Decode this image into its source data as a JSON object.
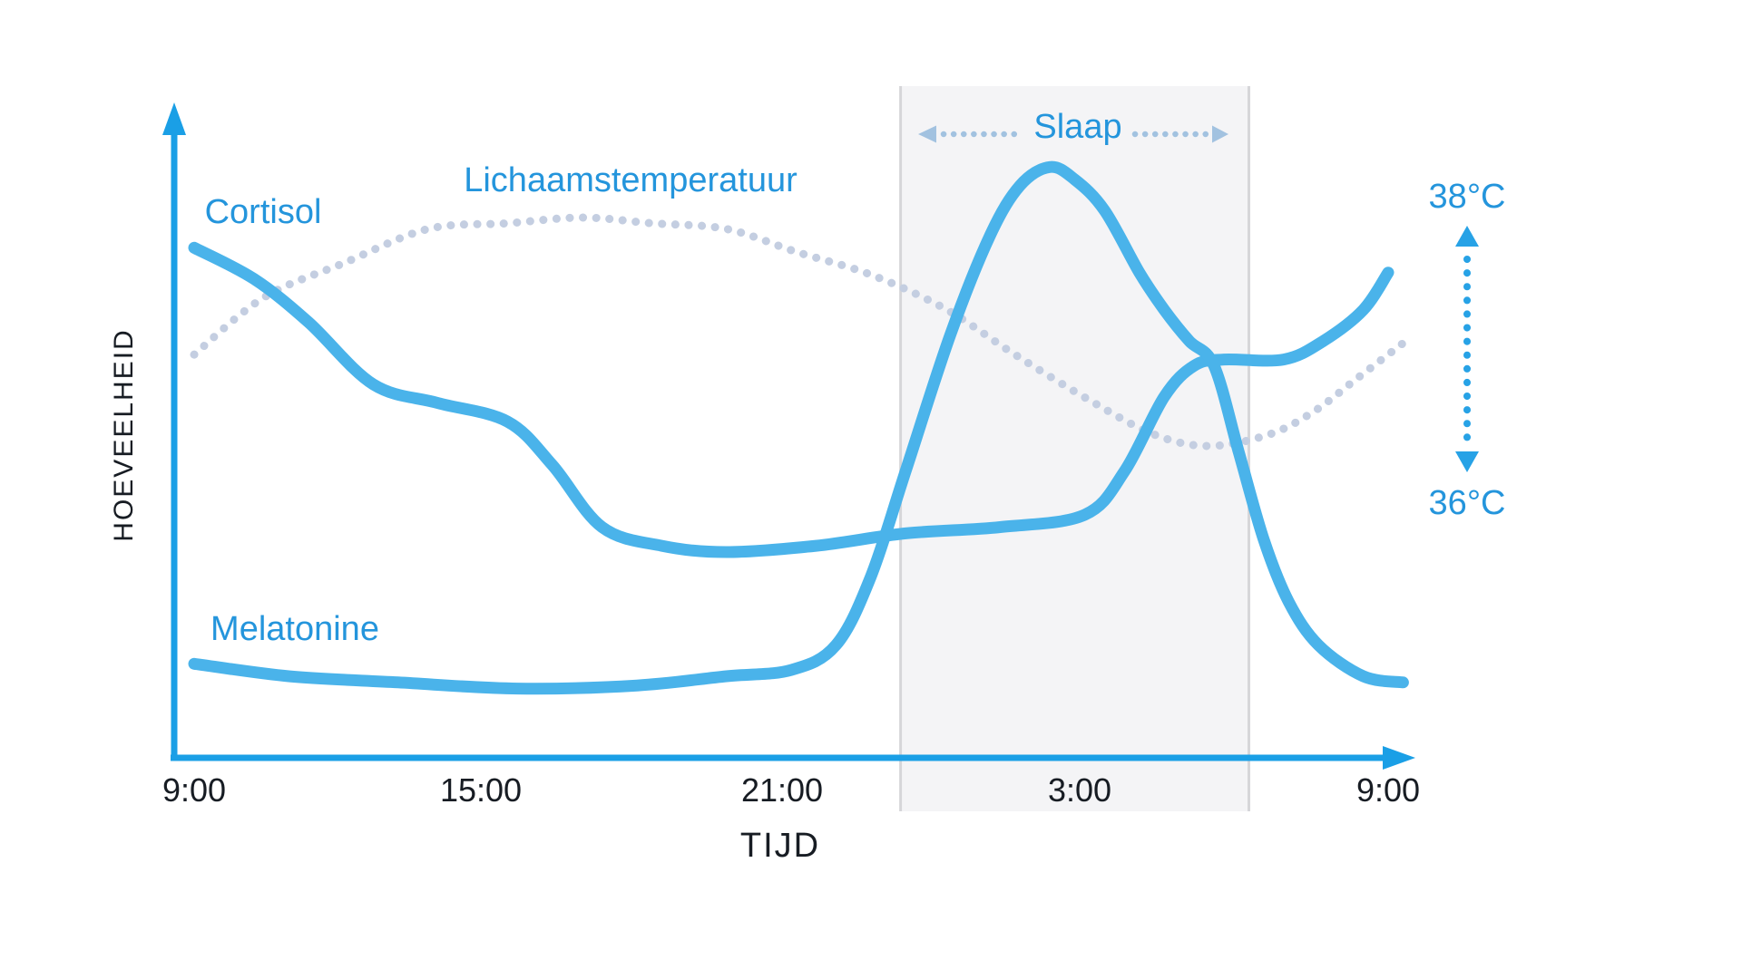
{
  "palette": {
    "bg": "#ffffff",
    "curve": "#4ab3ea",
    "axis": "#1a9fe6",
    "blue_label": "#2495dc",
    "dark_label": "#171c23",
    "temp_dots": "#c4cee1",
    "sleep_arrow": "#a2c2e0",
    "band_fill": "#f4f4f6",
    "band_edge": "#d6d6d9",
    "range_arrow": "#27a2e6"
  },
  "chart_data": {
    "type": "line",
    "title": "",
    "xlabel": "TIJD",
    "ylabel": "HOEVEELHEID",
    "x_tick_labels": [
      "9:00",
      "15:00",
      "21:00",
      "3:00",
      "9:00"
    ],
    "x_unit": "hour of day, from 9:00 to 9:00 next day (numeric hours 9 to 33)",
    "grid": false,
    "legend_position": "labels next to curves",
    "sleep_band": {
      "label": "Slaap",
      "start_hour": 23.2,
      "end_hour": 30.2
    },
    "right_scale": {
      "top": "38°C",
      "bottom": "36°C"
    },
    "series": [
      {
        "name": "Cortisol",
        "style": "solid",
        "y_unit": "relative amount (0-100)",
        "points": [
          [
            9.0,
            82
          ],
          [
            10.2,
            77
          ],
          [
            11.3,
            70
          ],
          [
            12.6,
            60
          ],
          [
            13.9,
            57
          ],
          [
            15.3,
            54
          ],
          [
            16.2,
            47
          ],
          [
            17.2,
            37
          ],
          [
            18.4,
            34
          ],
          [
            19.7,
            33
          ],
          [
            21.5,
            34
          ],
          [
            23.3,
            36
          ],
          [
            25.2,
            37
          ],
          [
            26.9,
            39
          ],
          [
            27.7,
            46
          ],
          [
            28.5,
            58
          ],
          [
            29.1,
            63
          ],
          [
            29.7,
            64
          ],
          [
            30.9,
            64
          ],
          [
            31.7,
            67
          ],
          [
            32.5,
            72
          ],
          [
            33.0,
            78
          ]
        ]
      },
      {
        "name": "Melatonine",
        "style": "solid",
        "y_unit": "relative amount (0-100)",
        "points": [
          [
            9.0,
            15
          ],
          [
            10.9,
            13
          ],
          [
            13.1,
            12
          ],
          [
            15.5,
            11
          ],
          [
            17.9,
            11.5
          ],
          [
            19.7,
            13
          ],
          [
            21.0,
            14
          ],
          [
            21.9,
            18
          ],
          [
            22.6,
            29
          ],
          [
            23.3,
            46
          ],
          [
            24.2,
            68
          ],
          [
            25.0,
            84
          ],
          [
            25.6,
            92
          ],
          [
            26.2,
            95
          ],
          [
            26.7,
            93
          ],
          [
            27.3,
            88
          ],
          [
            28.0,
            78
          ],
          [
            28.5,
            72
          ],
          [
            29.0,
            67
          ],
          [
            29.5,
            63
          ],
          [
            30.0,
            49
          ],
          [
            30.5,
            35
          ],
          [
            31.0,
            25
          ],
          [
            31.6,
            18
          ],
          [
            32.5,
            13
          ],
          [
            33.3,
            12
          ]
        ]
      },
      {
        "name": "Lichaamstemperatuur",
        "style": "dotted",
        "y_unit": "body temperature °C (right scale 36-38)",
        "points": [
          [
            9.0,
            36.8
          ],
          [
            10.4,
            37.3
          ],
          [
            12.0,
            37.6
          ],
          [
            13.7,
            37.9
          ],
          [
            15.3,
            37.95
          ],
          [
            16.8,
            38.0
          ],
          [
            18.2,
            37.95
          ],
          [
            19.7,
            37.9
          ],
          [
            21.1,
            37.7
          ],
          [
            22.6,
            37.5
          ],
          [
            24.1,
            37.2
          ],
          [
            25.5,
            36.8
          ],
          [
            27.0,
            36.4
          ],
          [
            28.3,
            36.1
          ],
          [
            29.4,
            36.0
          ],
          [
            30.6,
            36.1
          ],
          [
            31.5,
            36.3
          ],
          [
            32.4,
            36.6
          ],
          [
            33.3,
            36.9
          ]
        ]
      }
    ]
  }
}
